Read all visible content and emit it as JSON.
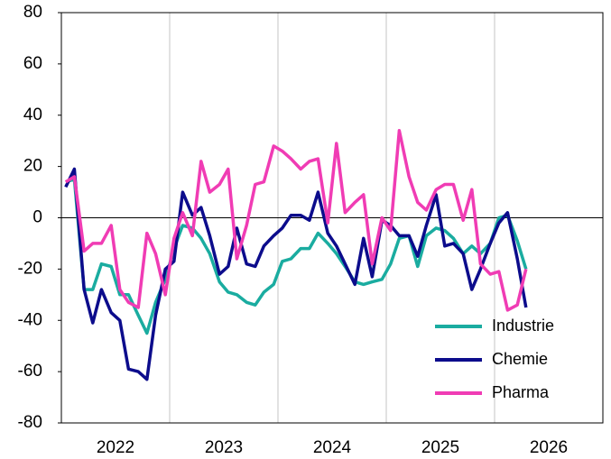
{
  "chart_data": {
    "type": "line",
    "x": [
      2022.04,
      2022.12,
      2022.21,
      2022.29,
      2022.37,
      2022.46,
      2022.54,
      2022.62,
      2022.71,
      2022.79,
      2022.87,
      2022.96,
      2023.04,
      2023.12,
      2023.21,
      2023.29,
      2023.37,
      2023.46,
      2023.54,
      2023.62,
      2023.71,
      2023.79,
      2023.87,
      2023.96,
      2024.04,
      2024.12,
      2024.21,
      2024.29,
      2024.37,
      2024.46,
      2024.54,
      2024.62,
      2024.71,
      2024.79,
      2024.87,
      2024.96,
      2025.04,
      2025.12,
      2025.21,
      2025.29,
      2025.37,
      2025.46,
      2025.54,
      2025.62,
      2025.71,
      2025.79,
      2025.87,
      2025.96,
      2026.04,
      2026.12,
      2026.21,
      2026.29
    ],
    "series": [
      {
        "name": "Industrie",
        "color": "#1aaca0",
        "values": [
          14,
          15,
          -28,
          -28,
          -18,
          -19,
          -30,
          -30,
          -38,
          -45,
          -33,
          -24,
          -12,
          -3,
          -4,
          -8,
          -14,
          -25,
          -29,
          -30,
          -33,
          -34,
          -29,
          -26,
          -17,
          -16,
          -12,
          -12,
          -6,
          -10,
          -14,
          -19,
          -25,
          -26,
          -25,
          -24,
          -18,
          -8,
          -7,
          -19,
          -7,
          -4,
          -5,
          -8,
          -14,
          -11,
          -14,
          -10,
          0,
          1,
          -9,
          -20
        ]
      },
      {
        "name": "Chemie",
        "color": "#0c0c8c",
        "values": [
          12,
          19,
          -28,
          -41,
          -28,
          -37,
          -40,
          -59,
          -60,
          -63,
          -38,
          -20,
          -17,
          10,
          1,
          4,
          -7,
          -22,
          -19,
          -4,
          -18,
          -19,
          -11,
          -7,
          -4,
          1,
          1,
          -1,
          10,
          -6,
          -11,
          -18,
          -26,
          -8,
          -23,
          -1,
          -3,
          -7,
          -7,
          -15,
          -3,
          9,
          -11,
          -10,
          -14,
          -28,
          -20,
          -10,
          -2,
          2,
          -16,
          -35
        ]
      },
      {
        "name": "Pharma",
        "color": "#f03cb4",
        "values": [
          14,
          16,
          -13,
          -10,
          -10,
          -3,
          -28,
          -33,
          -35,
          -6,
          -14,
          -30,
          -8,
          2,
          -7,
          22,
          10,
          13,
          19,
          -16,
          -3,
          13,
          14,
          28,
          26,
          23,
          19,
          22,
          23,
          -2,
          29,
          2,
          6,
          9,
          -18,
          0,
          -5,
          34,
          16,
          6,
          3,
          11,
          13,
          13,
          -1,
          11,
          -18,
          -22,
          -21,
          -36,
          -34,
          -20
        ]
      }
    ],
    "xlim": [
      2022,
      2027
    ],
    "xticks": [
      {
        "value": 2022.5,
        "label": "2022"
      },
      {
        "value": 2023.5,
        "label": "2023"
      },
      {
        "value": 2024.5,
        "label": "2024"
      },
      {
        "value": 2025.5,
        "label": "2025"
      },
      {
        "value": 2026.5,
        "label": "2026"
      }
    ],
    "x_gridlines": [
      2023,
      2024,
      2025,
      2026
    ],
    "ylim": [
      -80,
      80
    ],
    "yticks": [
      -80,
      -60,
      -40,
      -20,
      0,
      20,
      40,
      60,
      80
    ],
    "zero_line": true,
    "legend": "lower right"
  }
}
